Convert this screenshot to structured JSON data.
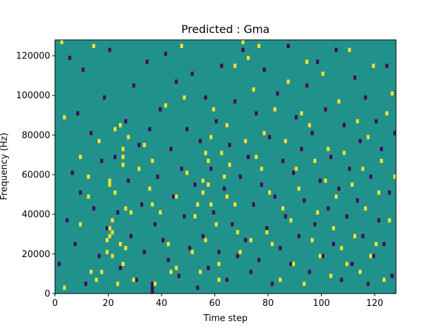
{
  "chart_data": {
    "type": "heatmap",
    "title": "Predicted : Gma",
    "xlabel": "Time step",
    "ylabel": "Frequency (Hz)",
    "xlim": [
      0,
      128
    ],
    "ylim": [
      0,
      128000
    ],
    "xticks": [
      0,
      20,
      40,
      60,
      80,
      100,
      120
    ],
    "yticks": [
      0,
      20000,
      40000,
      60000,
      80000,
      100000,
      120000
    ],
    "xtick_labels": [
      "0",
      "20",
      "40",
      "60",
      "80",
      "100",
      "120"
    ],
    "ytick_labels": [
      "0",
      "20000",
      "40000",
      "60000",
      "80000",
      "100000",
      "120000"
    ],
    "n_time_steps": 128,
    "n_freq_bins": 64,
    "bin_height_hz": 2000,
    "colormap": "viridis",
    "value_levels": {
      "low": -1,
      "background": 0,
      "high": 1
    },
    "colors": {
      "low": "#440154",
      "background": "#21918c",
      "high": "#fde725"
    },
    "grid": false,
    "high_cells": [
      [
        2,
        63
      ],
      [
        3,
        1
      ],
      [
        3,
        44
      ],
      [
        9,
        34
      ],
      [
        9,
        17
      ],
      [
        12,
        29
      ],
      [
        12,
        24
      ],
      [
        13,
        5
      ],
      [
        14,
        62
      ],
      [
        15,
        3
      ],
      [
        16,
        38
      ],
      [
        17,
        5
      ],
      [
        19,
        10
      ],
      [
        19,
        13
      ],
      [
        20,
        28
      ],
      [
        20,
        27
      ],
      [
        20,
        16
      ],
      [
        20,
        14
      ],
      [
        21,
        18
      ],
      [
        21,
        15
      ],
      [
        21,
        9
      ],
      [
        22,
        41
      ],
      [
        22,
        25
      ],
      [
        23,
        2
      ],
      [
        24,
        42
      ],
      [
        24,
        12
      ],
      [
        25,
        7
      ],
      [
        25,
        32
      ],
      [
        25,
        34
      ],
      [
        25,
        36
      ],
      [
        26,
        11
      ],
      [
        26,
        21
      ],
      [
        27,
        39
      ],
      [
        28,
        20
      ],
      [
        29,
        3
      ],
      [
        31,
        31
      ],
      [
        33,
        37
      ],
      [
        35,
        26
      ],
      [
        36,
        33
      ],
      [
        36,
        22
      ],
      [
        37,
        2
      ],
      [
        39,
        20
      ],
      [
        41,
        47
      ],
      [
        42,
        12
      ],
      [
        43,
        5
      ],
      [
        45,
        24
      ],
      [
        45,
        6
      ],
      [
        47,
        62
      ],
      [
        48,
        49
      ],
      [
        49,
        30
      ],
      [
        51,
        10
      ],
      [
        52,
        19
      ],
      [
        53,
        22
      ],
      [
        54,
        5
      ],
      [
        55,
        25
      ],
      [
        55,
        28
      ],
      [
        56,
        13
      ],
      [
        56,
        35
      ],
      [
        57,
        27
      ],
      [
        57,
        33
      ],
      [
        58,
        39
      ],
      [
        58,
        22
      ],
      [
        59,
        46
      ],
      [
        60,
        17
      ],
      [
        61,
        3
      ],
      [
        61,
        7
      ],
      [
        62,
        35
      ],
      [
        63,
        29
      ],
      [
        64,
        24
      ],
      [
        64,
        42
      ],
      [
        65,
        32
      ],
      [
        67,
        22
      ],
      [
        67,
        57
      ],
      [
        68,
        15
      ],
      [
        69,
        10
      ],
      [
        70,
        63
      ],
      [
        71,
        38
      ],
      [
        72,
        59
      ],
      [
        73,
        13
      ],
      [
        74,
        51
      ],
      [
        75,
        34
      ],
      [
        76,
        62
      ],
      [
        77,
        31
      ],
      [
        78,
        40
      ],
      [
        79,
        15
      ],
      [
        80,
        25
      ],
      [
        81,
        12
      ],
      [
        82,
        46
      ],
      [
        84,
        3
      ],
      [
        85,
        21
      ],
      [
        86,
        38
      ],
      [
        87,
        53
      ],
      [
        88,
        18
      ],
      [
        89,
        7
      ],
      [
        90,
        31
      ],
      [
        91,
        26
      ],
      [
        92,
        45
      ],
      [
        93,
        2
      ],
      [
        94,
        58
      ],
      [
        95,
        42
      ],
      [
        96,
        13
      ],
      [
        97,
        33
      ],
      [
        98,
        20
      ],
      [
        99,
        9
      ],
      [
        100,
        55
      ],
      [
        101,
        28
      ],
      [
        102,
        36
      ],
      [
        103,
        4
      ],
      [
        104,
        16
      ],
      [
        105,
        24
      ],
      [
        106,
        48
      ],
      [
        107,
        11
      ],
      [
        108,
        35
      ],
      [
        109,
        7
      ],
      [
        110,
        61
      ],
      [
        111,
        27
      ],
      [
        112,
        14
      ],
      [
        113,
        43
      ],
      [
        114,
        5
      ],
      [
        115,
        31
      ],
      [
        116,
        21
      ],
      [
        117,
        39
      ],
      [
        118,
        9
      ],
      [
        119,
        57
      ],
      [
        120,
        12
      ],
      [
        121,
        25
      ],
      [
        122,
        33
      ],
      [
        123,
        3
      ],
      [
        124,
        45
      ],
      [
        125,
        18
      ],
      [
        126,
        50
      ],
      [
        127,
        29
      ]
    ],
    "low_cells": [
      [
        1,
        7
      ],
      [
        4,
        18
      ],
      [
        5,
        59
      ],
      [
        6,
        30
      ],
      [
        7,
        12
      ],
      [
        8,
        45
      ],
      [
        9,
        25
      ],
      [
        10,
        56
      ],
      [
        11,
        2
      ],
      [
        13,
        40
      ],
      [
        14,
        21
      ],
      [
        16,
        9
      ],
      [
        17,
        33
      ],
      [
        18,
        49
      ],
      [
        19,
        16
      ],
      [
        20,
        61
      ],
      [
        22,
        34
      ],
      [
        23,
        20
      ],
      [
        24,
        6
      ],
      [
        26,
        43
      ],
      [
        27,
        28
      ],
      [
        28,
        14
      ],
      [
        29,
        52
      ],
      [
        30,
        3
      ],
      [
        31,
        37
      ],
      [
        32,
        22
      ],
      [
        33,
        10
      ],
      [
        34,
        58
      ],
      [
        35,
        41
      ],
      [
        36,
        0
      ],
      [
        36,
        1
      ],
      [
        36,
        2
      ],
      [
        37,
        17
      ],
      [
        38,
        29
      ],
      [
        39,
        46
      ],
      [
        40,
        13
      ],
      [
        41,
        60
      ],
      [
        42,
        8
      ],
      [
        43,
        36
      ],
      [
        44,
        24
      ],
      [
        45,
        53
      ],
      [
        46,
        4
      ],
      [
        47,
        31
      ],
      [
        48,
        19
      ],
      [
        49,
        41
      ],
      [
        50,
        11
      ],
      [
        51,
        55
      ],
      [
        52,
        27
      ],
      [
        53,
        1
      ],
      [
        54,
        38
      ],
      [
        55,
        14
      ],
      [
        56,
        49
      ],
      [
        57,
        6
      ],
      [
        58,
        31
      ],
      [
        59,
        20
      ],
      [
        60,
        43
      ],
      [
        61,
        10
      ],
      [
        62,
        57
      ],
      [
        63,
        26
      ],
      [
        64,
        3
      ],
      [
        65,
        37
      ],
      [
        66,
        17
      ],
      [
        67,
        48
      ],
      [
        68,
        9
      ],
      [
        69,
        29
      ],
      [
        70,
        61
      ],
      [
        71,
        13
      ],
      [
        72,
        34
      ],
      [
        73,
        5
      ],
      [
        74,
        22
      ],
      [
        75,
        45
      ],
      [
        76,
        8
      ],
      [
        77,
        27
      ],
      [
        78,
        56
      ],
      [
        79,
        16
      ],
      [
        80,
        39
      ],
      [
        81,
        2
      ],
      [
        82,
        24
      ],
      [
        83,
        50
      ],
      [
        84,
        11
      ],
      [
        85,
        33
      ],
      [
        86,
        19
      ],
      [
        87,
        62
      ],
      [
        88,
        7
      ],
      [
        89,
        30
      ],
      [
        90,
        44
      ],
      [
        91,
        14
      ],
      [
        92,
        36
      ],
      [
        93,
        23
      ],
      [
        94,
        52
      ],
      [
        95,
        5
      ],
      [
        96,
        40
      ],
      [
        97,
        17
      ],
      [
        98,
        58
      ],
      [
        99,
        28
      ],
      [
        100,
        9
      ],
      [
        101,
        46
      ],
      [
        102,
        21
      ],
      [
        103,
        34
      ],
      [
        104,
        12
      ],
      [
        105,
        61
      ],
      [
        106,
        26
      ],
      [
        107,
        3
      ],
      [
        108,
        42
      ],
      [
        109,
        19
      ],
      [
        110,
        31
      ],
      [
        111,
        7
      ],
      [
        112,
        54
      ],
      [
        113,
        23
      ],
      [
        114,
        38
      ],
      [
        115,
        14
      ],
      [
        116,
        49
      ],
      [
        117,
        2
      ],
      [
        118,
        29
      ],
      [
        119,
        9
      ],
      [
        120,
        43
      ],
      [
        121,
        18
      ],
      [
        122,
        36
      ],
      [
        123,
        12
      ],
      [
        124,
        57
      ],
      [
        125,
        25
      ],
      [
        126,
        4
      ],
      [
        127,
        40
      ]
    ]
  }
}
